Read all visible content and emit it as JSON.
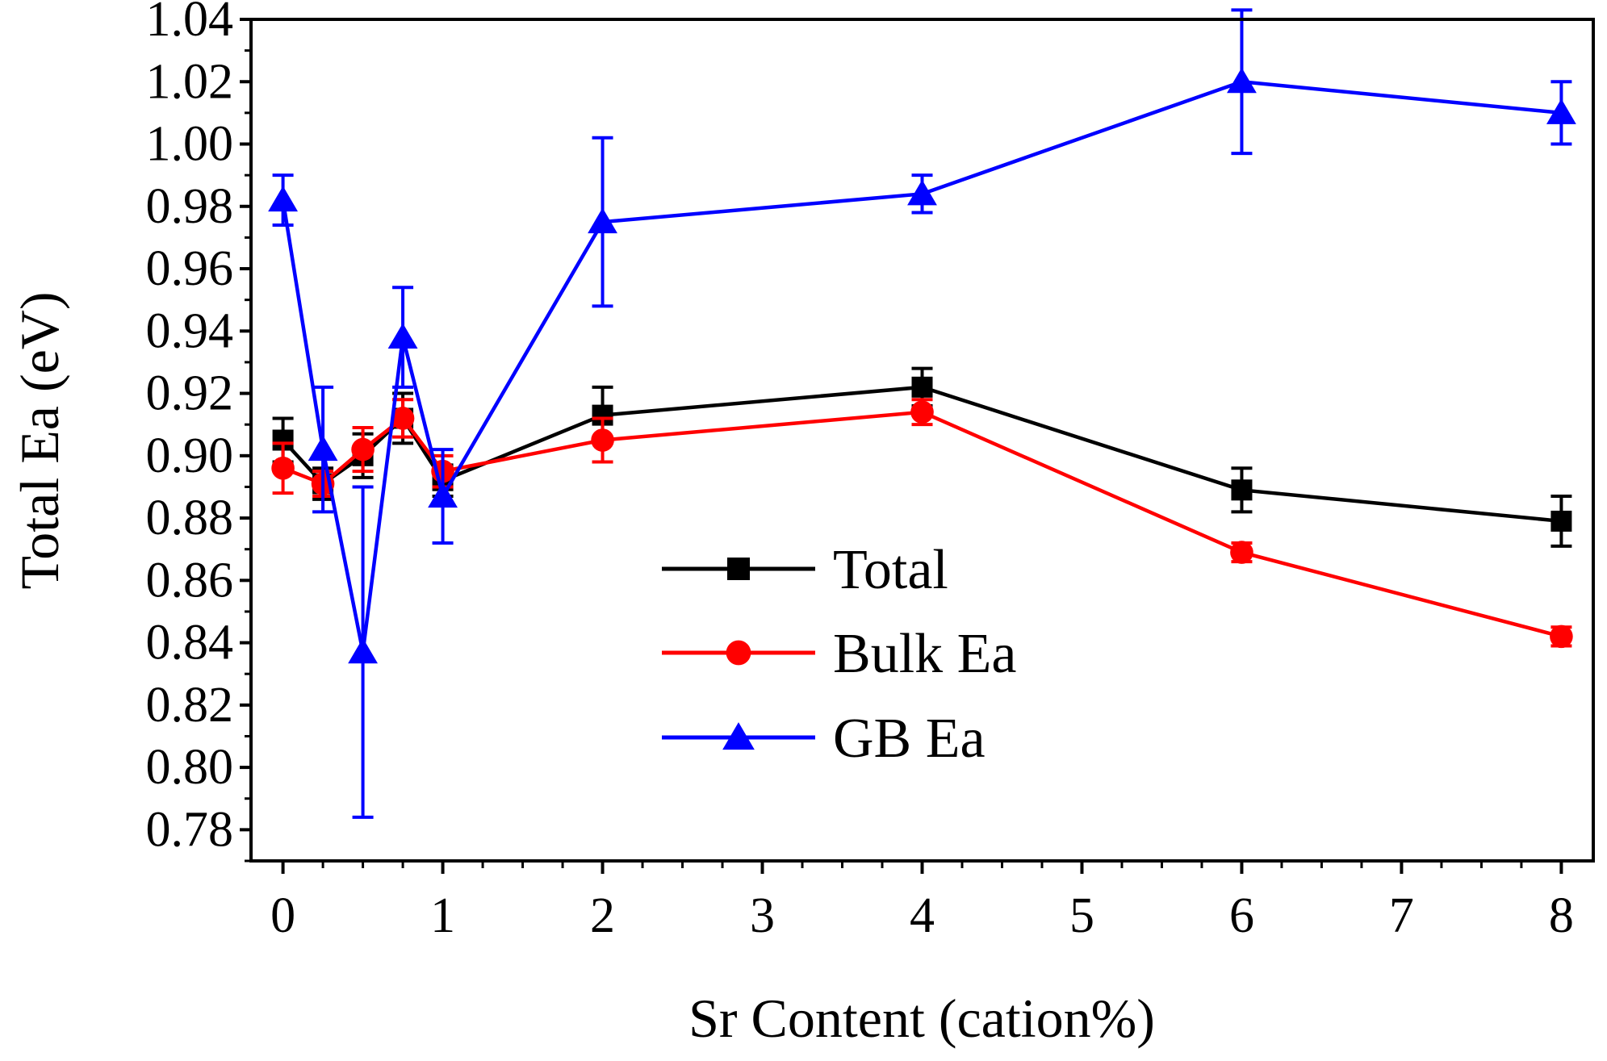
{
  "chart_data": {
    "type": "line",
    "title": "",
    "xlabel": "Sr Content (cation%)",
    "ylabel": "Total Ea (eV)",
    "xlim": [
      -0.2,
      8.2
    ],
    "ylim": [
      0.77,
      1.04
    ],
    "xticks": [
      0,
      1,
      2,
      3,
      4,
      5,
      6,
      7,
      8
    ],
    "xtick_labels": [
      "0",
      "1",
      "2",
      "3",
      "4",
      "5",
      "6",
      "7",
      "8"
    ],
    "yticks": [
      0.78,
      0.8,
      0.82,
      0.84,
      0.86,
      0.88,
      0.9,
      0.92,
      0.94,
      0.96,
      0.98,
      1.0,
      1.02,
      1.04
    ],
    "ytick_labels": [
      "0.78",
      "0.80",
      "0.82",
      "0.84",
      "0.86",
      "0.88",
      "0.90",
      "0.92",
      "0.94",
      "0.96",
      "0.98",
      "1.00",
      "1.02",
      "1.04"
    ],
    "grid": false,
    "legend_position": "center-right",
    "series": [
      {
        "name": "Total",
        "color": "#000000",
        "marker": "square",
        "x": [
          0,
          0.25,
          0.5,
          0.75,
          1,
          2,
          4,
          6,
          8
        ],
        "y": [
          0.905,
          0.891,
          0.9,
          0.912,
          0.892,
          0.913,
          0.922,
          0.889,
          0.879
        ],
        "err": [
          0.007,
          0.005,
          0.007,
          0.008,
          0.005,
          0.009,
          0.006,
          0.007,
          0.008
        ]
      },
      {
        "name": "Bulk Ea",
        "color": "#ff0000",
        "marker": "circle",
        "x": [
          0,
          0.25,
          0.5,
          0.75,
          1,
          2,
          4,
          6,
          8
        ],
        "y": [
          0.896,
          0.891,
          0.902,
          0.912,
          0.895,
          0.905,
          0.914,
          0.869,
          0.842
        ],
        "err": [
          0.008,
          0.004,
          0.007,
          0.006,
          0.005,
          0.007,
          0.004,
          0.003,
          0.003
        ]
      },
      {
        "name": "GB Ea",
        "color": "#0000ff",
        "marker": "triangle",
        "x": [
          0,
          0.25,
          0.5,
          0.75,
          1,
          2,
          4,
          6,
          8
        ],
        "y": [
          0.982,
          0.902,
          0.837,
          0.938,
          0.887,
          0.975,
          0.984,
          1.02,
          1.01
        ],
        "err": [
          0.008,
          0.02,
          0.053,
          0.016,
          0.015,
          0.027,
          0.006,
          0.023,
          0.01
        ]
      }
    ]
  }
}
